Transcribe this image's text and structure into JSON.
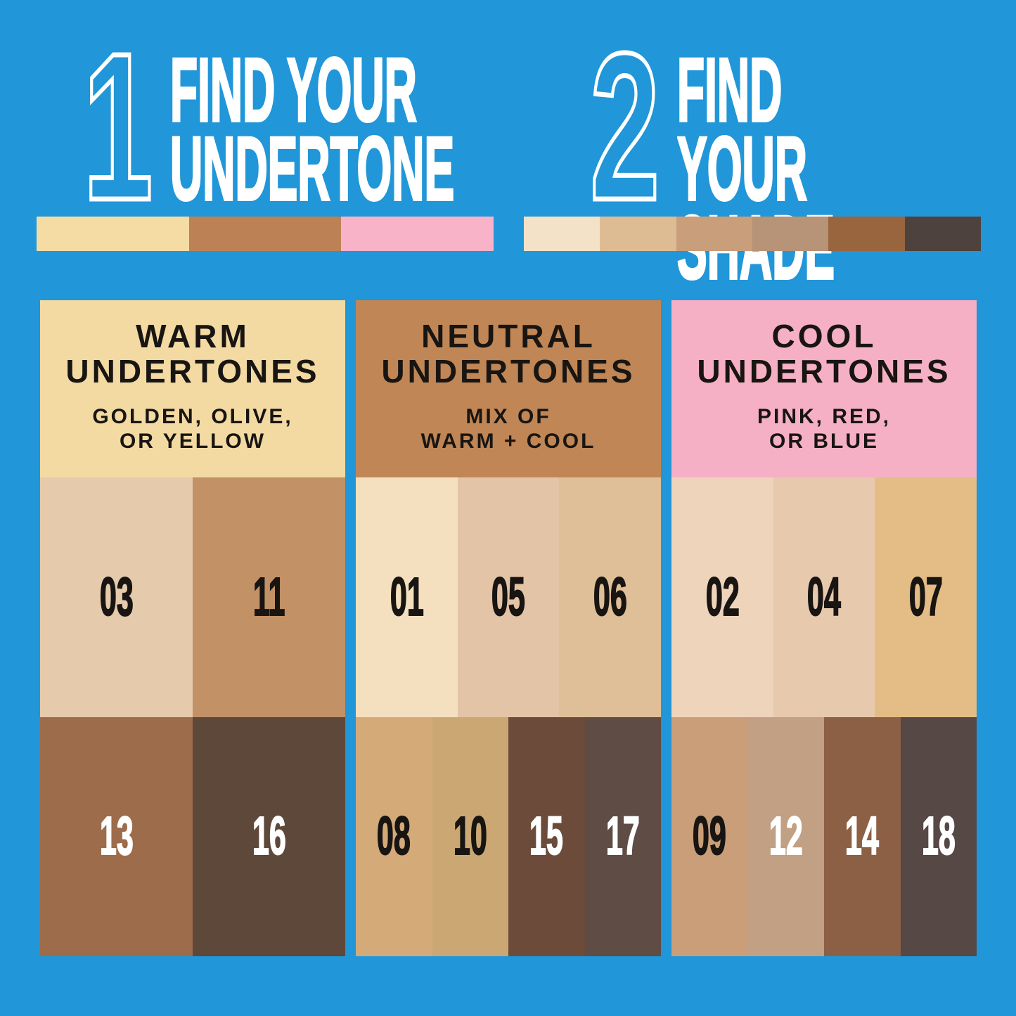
{
  "canvas": {
    "bg": "#2196d8"
  },
  "steps": [
    {
      "number": "1",
      "title": "FIND YOUR\nUNDERTONE",
      "strip": [
        "#f5dba4",
        "#bc8154",
        "#f8b3c8"
      ]
    },
    {
      "number": "2",
      "title": "FIND YOUR\nSHADE",
      "strip": [
        "#f3e2c8",
        "#debc93",
        "#c99e7a",
        "#b79377",
        "#99653f",
        "#4e423e"
      ]
    }
  ],
  "columns": [
    {
      "key": "warm",
      "header": {
        "title": "WARM\nUNDERTONES",
        "subtitle": "GOLDEN, OLIVE,\nOR YELLOW",
        "bg": "#f3daa3",
        "text_color": "#181512"
      },
      "top_row": [
        {
          "label": "03",
          "color": "#e5caac",
          "label_color": "#181512"
        },
        {
          "label": "11",
          "color": "#c39166",
          "label_color": "#181512"
        }
      ],
      "bottom_row": [
        {
          "label": "13",
          "color": "#9d6c4b",
          "label_color": "#ffffff"
        },
        {
          "label": "16",
          "color": "#5e4839",
          "label_color": "#ffffff"
        }
      ]
    },
    {
      "key": "neutral",
      "header": {
        "title": "NEUTRAL\nUNDERTONES",
        "subtitle": "MIX OF\nWARM + COOL",
        "bg": "#c08655",
        "text_color": "#181512"
      },
      "top_row": [
        {
          "label": "01",
          "color": "#f4e0bf",
          "label_color": "#181512"
        },
        {
          "label": "05",
          "color": "#e3c4a6",
          "label_color": "#181512"
        },
        {
          "label": "06",
          "color": "#dfbf97",
          "label_color": "#181512"
        }
      ],
      "bottom_row": [
        {
          "label": "08",
          "color": "#d4aa78",
          "label_color": "#181512"
        },
        {
          "label": "10",
          "color": "#cba873",
          "label_color": "#181512"
        },
        {
          "label": "15",
          "color": "#6d4b3a",
          "label_color": "#ffffff"
        },
        {
          "label": "17",
          "color": "#5e4c45",
          "label_color": "#ffffff"
        }
      ]
    },
    {
      "key": "cool",
      "header": {
        "title": "COOL\nUNDERTONES",
        "subtitle": "PINK, RED,\nOR BLUE",
        "bg": "#f6b0c6",
        "text_color": "#181512"
      },
      "top_row": [
        {
          "label": "02",
          "color": "#efd4bc",
          "label_color": "#181512"
        },
        {
          "label": "04",
          "color": "#e7c9ae",
          "label_color": "#181512"
        },
        {
          "label": "07",
          "color": "#e3bd85",
          "label_color": "#181512"
        }
      ],
      "bottom_row": [
        {
          "label": "09",
          "color": "#c99e78",
          "label_color": "#181512"
        },
        {
          "label": "12",
          "color": "#c1a083",
          "label_color": "#ffffff"
        },
        {
          "label": "14",
          "color": "#8c6044",
          "label_color": "#ffffff"
        },
        {
          "label": "18",
          "color": "#554845",
          "label_color": "#ffffff"
        }
      ]
    }
  ]
}
